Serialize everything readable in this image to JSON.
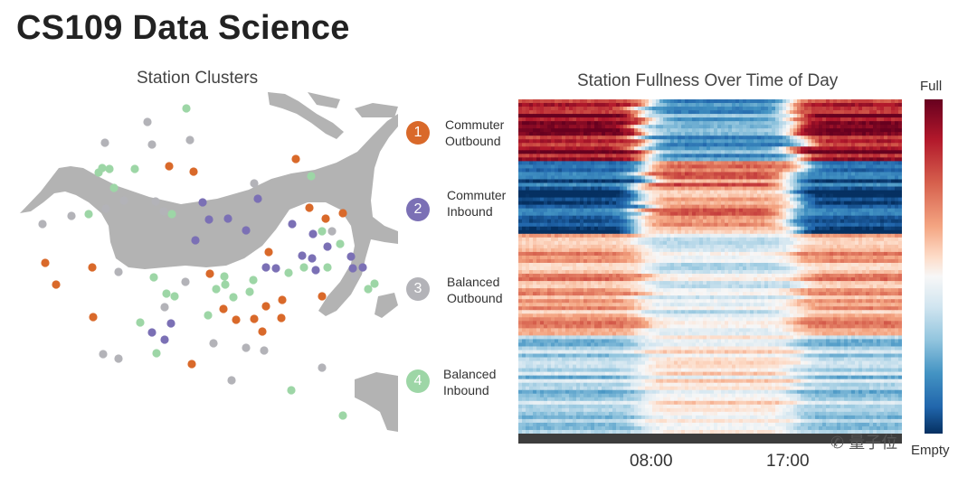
{
  "header": {
    "title": "CS109 Data Science"
  },
  "map_panel": {
    "title": "Station Clusters"
  },
  "legend": {
    "items": [
      {
        "number": "1",
        "line1": "Commuter",
        "line2": "Outbound",
        "color": "#D9692A"
      },
      {
        "number": "2",
        "line1": "Commuter",
        "line2": "Inbound",
        "color": "#7B70B5"
      },
      {
        "number": "3",
        "line1": "Balanced",
        "line2": "Outbound",
        "color": "#B3B3B8"
      },
      {
        "number": "4",
        "line1": "Balanced",
        "line2": "Inbound",
        "color": "#9DD6A6"
      }
    ]
  },
  "heatmap_panel": {
    "title": "Station Fullness Over Time of Day"
  },
  "colorbar": {
    "top_label": "Full",
    "bottom_label": "Empty"
  },
  "watermark": {
    "text": "量子位"
  },
  "chart_data": {
    "type": "heatmap",
    "title": "Station Fullness Over Time of Day",
    "x_tick_labels": [
      "08:00",
      "17:00"
    ],
    "row_groups": [
      {
        "cluster": "Commuter Outbound",
        "morning": "full",
        "midday": "empty",
        "evening": "full"
      },
      {
        "cluster": "Commuter Inbound",
        "morning": "empty",
        "midday": "full",
        "evening": "empty"
      },
      {
        "cluster": "Balanced Outbound",
        "morning": "mild-full",
        "midday": "neutral",
        "evening": "mild-full"
      },
      {
        "cluster": "Balanced Inbound",
        "morning": "mild-empty",
        "midday": "neutral",
        "evening": "mild-empty"
      }
    ],
    "colorbar_range": [
      "Empty",
      "Full"
    ],
    "colormap": "RdBu"
  }
}
